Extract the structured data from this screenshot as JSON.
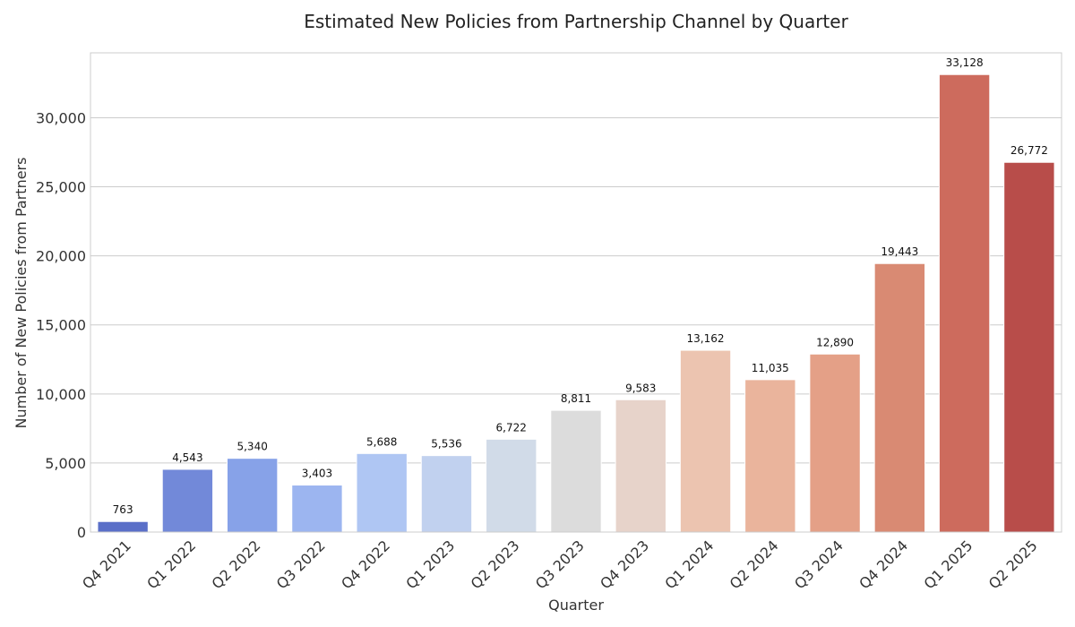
{
  "chart_data": {
    "type": "bar",
    "title": "Estimated New Policies from Partnership Channel by Quarter",
    "xlabel": "Quarter",
    "ylabel": "Number of New Policies from Partners",
    "categories": [
      "Q4 2021",
      "Q1 2022",
      "Q2 2022",
      "Q3 2022",
      "Q4 2022",
      "Q1 2023",
      "Q2 2023",
      "Q3 2023",
      "Q4 2023",
      "Q1 2024",
      "Q2 2024",
      "Q3 2024",
      "Q4 2024",
      "Q1 2025",
      "Q2 2025"
    ],
    "values": [
      763,
      4543,
      5340,
      3403,
      5688,
      5536,
      6722,
      8811,
      9583,
      13162,
      11035,
      12890,
      19443,
      33128,
      26772
    ],
    "value_labels": [
      "763",
      "4,543",
      "5,340",
      "3,403",
      "5,688",
      "5,536",
      "6,722",
      "8,811",
      "9,583",
      "13,162",
      "11,035",
      "12,890",
      "19,443",
      "33,128",
      "26,772"
    ],
    "colors": [
      "#5a6fc8",
      "#7289d9",
      "#87a2e8",
      "#9cb5f0",
      "#afc6f3",
      "#c1d1ef",
      "#d1dbe8",
      "#dcdcdc",
      "#e7d3ca",
      "#ecc4b0",
      "#eab49c",
      "#e4a087",
      "#d98a73",
      "#cd6b5d",
      "#b84d4a"
    ],
    "ylim": [
      0,
      34700
    ],
    "yticks": [
      0,
      5000,
      10000,
      15000,
      20000,
      25000,
      30000
    ],
    "ytick_labels": [
      "0",
      "5,000",
      "10,000",
      "15,000",
      "20,000",
      "25,000",
      "30,000"
    ],
    "grid": true,
    "legend": "none"
  }
}
